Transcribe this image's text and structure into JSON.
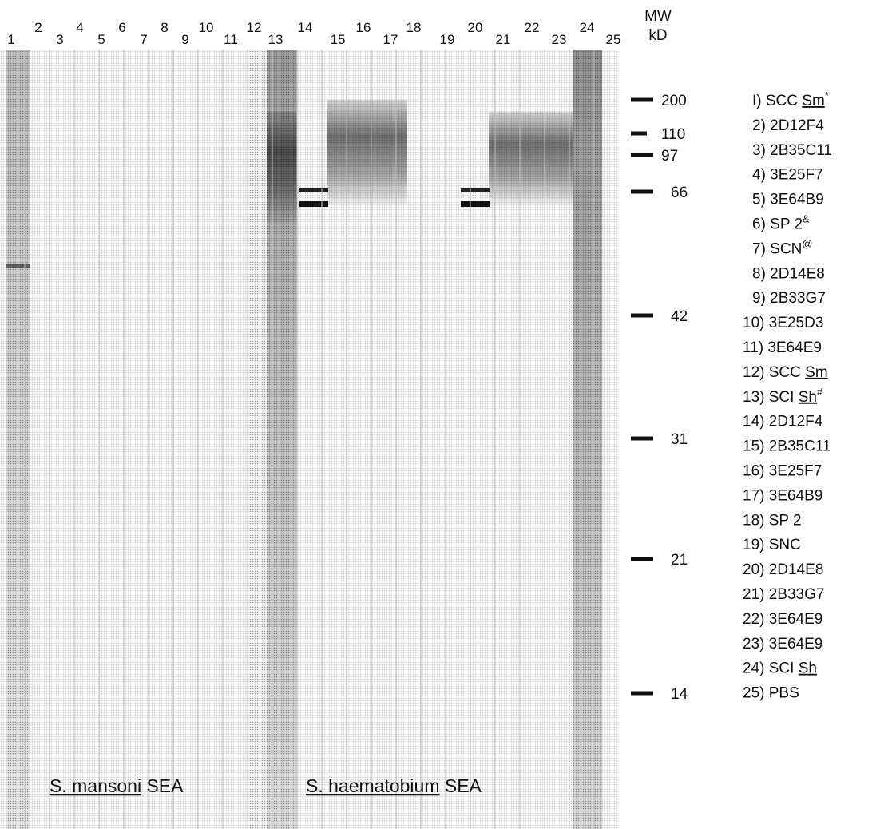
{
  "figure": {
    "lanes": [
      "1",
      "2",
      "3",
      "4",
      "5",
      "6",
      "7",
      "8",
      "9",
      "10",
      "11",
      "12",
      "13",
      "14",
      "15",
      "16",
      "17",
      "18",
      "19",
      "20",
      "21",
      "22",
      "23",
      "24",
      "25"
    ],
    "mw_header": [
      "MW",
      "kD"
    ],
    "markers": [
      200,
      110,
      97,
      66,
      42,
      31,
      21,
      14
    ],
    "legend": [
      {
        "label": "I) SCC ",
        "underlined": "Sm",
        "sup": "*"
      },
      {
        "label": "2) 2D12F4"
      },
      {
        "label": "3) 2B35C11"
      },
      {
        "label": "4) 3E25F7"
      },
      {
        "label": "5) 3E64B9"
      },
      {
        "label": "6) SP 2",
        "sup": "&"
      },
      {
        "label": "7) SCN",
        "sup": "@"
      },
      {
        "label": "8) 2D14E8"
      },
      {
        "label": "9) 2B33G7"
      },
      {
        "label": "10) 3E25D3"
      },
      {
        "label": "11) 3E64E9"
      },
      {
        "label": "12) SCC ",
        "underlined": "Sm"
      },
      {
        "label": "13) SCI ",
        "underlined": "Sh",
        "sup": "#"
      },
      {
        "label": "14) 2D12F4"
      },
      {
        "label": "15) 2B35C11"
      },
      {
        "label": "16) 3E25F7"
      },
      {
        "label": "17) 3E64B9"
      },
      {
        "label": "18) SP 2"
      },
      {
        "label": "19) SNC"
      },
      {
        "label": "20) 2D14E8"
      },
      {
        "label": "21) 2B33G7"
      },
      {
        "label": "22) 3E64E9"
      },
      {
        "label": "23) 3E64E9"
      },
      {
        "label": "24) SCI ",
        "underlined": "Sh"
      },
      {
        "label": "25) PBS"
      }
    ],
    "gel_labels": [
      {
        "species": "S. mansoni",
        "suffix": " SEA"
      },
      {
        "species": "S. haematobium",
        "suffix": " SEA"
      }
    ]
  }
}
